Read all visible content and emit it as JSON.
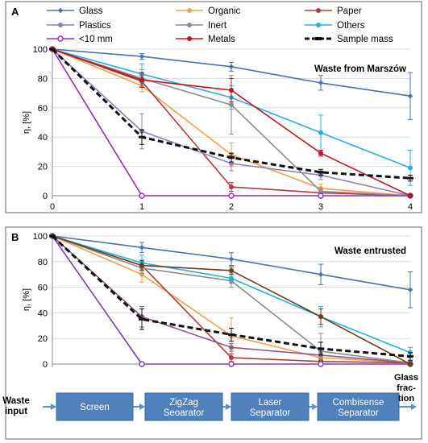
{
  "colors": {
    "glass": "#4a72b0",
    "organic": "#f0a04b",
    "paper": "#b03a3a",
    "plastics": "#8f7fb4",
    "inert": "#8c8c8c",
    "others": "#29aee0",
    "lt10": "#8e2fb5",
    "metals": "#c0141e",
    "sample": "#111111",
    "lt10_b": "#7b3fb5",
    "plastics_b": "#8b5a8b",
    "metals_b": "#6a3f1a",
    "box": "#4f81bd",
    "arrow": "#5b8fc9"
  },
  "chart_data": [
    {
      "panel_label": "A",
      "panel_title": "Waste from Marszów",
      "type": "line",
      "ylabel": "η, [%]",
      "ylim": [
        0,
        100
      ],
      "xlim": [
        0,
        4
      ],
      "x": [
        0,
        1,
        2,
        3,
        4
      ],
      "yticks": [
        "0",
        "20",
        "40",
        "60",
        "80",
        "100"
      ],
      "xticks": [
        "0",
        "1",
        "2",
        "3",
        "4"
      ],
      "grid": "horizontal",
      "legend": {
        "placement": "top",
        "entries": [
          {
            "label": "Glass",
            "color_key": "glass",
            "marker": "diamond"
          },
          {
            "label": "Organic",
            "color_key": "organic",
            "marker": "circle"
          },
          {
            "label": "Paper",
            "color_key": "paper",
            "marker": "circle"
          },
          {
            "label": "Plastics",
            "color_key": "plastics",
            "marker": "circle"
          },
          {
            "label": "Inert",
            "color_key": "inert",
            "marker": "circle"
          },
          {
            "label": "Others",
            "color_key": "others",
            "marker": "circle"
          },
          {
            "label": "<10 mm",
            "color_key": "lt10",
            "marker": "open-circle"
          },
          {
            "label": "Metals",
            "color_key": "metals",
            "marker": "circle"
          },
          {
            "label": "Sample mass",
            "color_key": "sample",
            "marker": "dashed-bar"
          }
        ]
      },
      "series": [
        {
          "name": "Glass",
          "color_key": "glass",
          "marker": "diamond",
          "values": [
            100,
            95,
            88,
            77,
            68
          ],
          "err": [
            0,
            2,
            3,
            5,
            16
          ]
        },
        {
          "name": "Organic",
          "color_key": "organic",
          "marker": "circle",
          "values": [
            100,
            75,
            28,
            5,
            0
          ],
          "err": [
            0,
            4,
            8,
            3,
            0
          ]
        },
        {
          "name": "Paper",
          "color_key": "paper",
          "marker": "circle",
          "values": [
            100,
            78,
            6,
            2,
            0
          ],
          "err": [
            0,
            4,
            3,
            1,
            0
          ]
        },
        {
          "name": "Plastics",
          "color_key": "plastics",
          "marker": "circle",
          "values": [
            100,
            44,
            22,
            14,
            0
          ],
          "err": [
            0,
            12,
            5,
            3,
            0
          ]
        },
        {
          "name": "Inert",
          "color_key": "inert",
          "marker": "circle",
          "values": [
            100,
            80,
            62,
            3,
            0
          ],
          "err": [
            0,
            6,
            20,
            2,
            0
          ]
        },
        {
          "name": "Others",
          "color_key": "others",
          "marker": "circle",
          "values": [
            100,
            83,
            67,
            43,
            19
          ],
          "err": [
            0,
            7,
            8,
            12,
            12
          ]
        },
        {
          "name": "<10 mm",
          "color_key": "lt10",
          "marker": "open-circle",
          "values": [
            100,
            0,
            0,
            0,
            0
          ],
          "err": [
            0,
            0,
            0,
            0,
            0
          ]
        },
        {
          "name": "Metals",
          "color_key": "metals",
          "marker": "circle",
          "values": [
            100,
            79,
            72,
            29,
            0
          ],
          "err": [
            0,
            5,
            8,
            2,
            1
          ]
        },
        {
          "name": "Sample mass",
          "color_key": "sample",
          "marker": "dash",
          "dashed": true,
          "values": [
            100,
            40,
            26,
            16,
            12
          ],
          "err": [
            0,
            5,
            3,
            2,
            2
          ]
        }
      ]
    },
    {
      "panel_label": "B",
      "panel_title": "Waste entrusted",
      "type": "line",
      "ylabel": "η, [%]",
      "ylim": [
        0,
        100
      ],
      "xlim": [
        0,
        4
      ],
      "x": [
        0,
        1,
        2,
        3,
        4
      ],
      "yticks": [
        "0",
        "20",
        "40",
        "60",
        "80",
        "100"
      ],
      "grid": "horizontal",
      "series": [
        {
          "name": "Glass",
          "color_key": "glass",
          "marker": "diamond",
          "values": [
            100,
            91,
            82,
            70,
            58
          ],
          "err": [
            0,
            4,
            5,
            8,
            14
          ]
        },
        {
          "name": "Organic",
          "color_key": "organic",
          "marker": "circle",
          "values": [
            100,
            70,
            22,
            5,
            1
          ],
          "err": [
            0,
            6,
            14,
            3,
            1
          ]
        },
        {
          "name": "Paper",
          "color_key": "paper",
          "marker": "circle",
          "values": [
            100,
            77,
            5,
            2,
            1
          ],
          "err": [
            0,
            4,
            3,
            1,
            1
          ]
        },
        {
          "name": "Plastics",
          "color_key": "plastics_b",
          "marker": "circle",
          "values": [
            100,
            37,
            13,
            7,
            1
          ],
          "err": [
            0,
            8,
            3,
            3,
            1
          ]
        },
        {
          "name": "Inert",
          "color_key": "inert",
          "marker": "circle",
          "values": [
            100,
            75,
            65,
            10,
            1
          ],
          "err": [
            0,
            4,
            5,
            14,
            1
          ]
        },
        {
          "name": "Others",
          "color_key": "others",
          "marker": "circle",
          "values": [
            100,
            79,
            67,
            37,
            9
          ],
          "err": [
            0,
            6,
            4,
            8,
            4
          ]
        },
        {
          "name": "<10 mm",
          "color_key": "lt10_b",
          "marker": "open-circle",
          "values": [
            100,
            0,
            0,
            0,
            0
          ],
          "err": [
            0,
            0,
            0,
            0,
            0
          ]
        },
        {
          "name": "Metals",
          "color_key": "metals_b",
          "marker": "circle",
          "values": [
            100,
            77,
            73,
            37,
            0
          ],
          "err": [
            0,
            4,
            3,
            6,
            0
          ]
        },
        {
          "name": "Sample mass",
          "color_key": "sample",
          "marker": "dash",
          "dashed": true,
          "values": [
            100,
            35,
            23,
            12,
            6
          ],
          "err": [
            0,
            8,
            5,
            5,
            3
          ]
        }
      ]
    }
  ],
  "process": {
    "start_label": "Waste\ninput",
    "stages": [
      "Screen",
      "ZigZag\nSeoarator",
      "Laser\nSeparator",
      "Combisense\nSeparator"
    ],
    "end_label": "Glass\nfrac-\ntion"
  }
}
